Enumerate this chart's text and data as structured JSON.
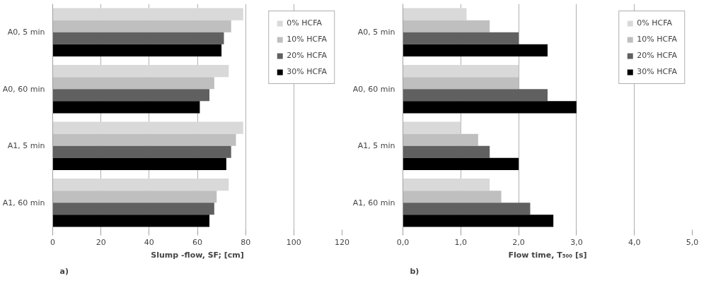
{
  "chart_data": [
    {
      "type": "bar",
      "orientation": "horizontal",
      "categories": [
        "A0, 5 min",
        "A0, 60 min",
        "A1, 5 min",
        "A1, 60 min"
      ],
      "series": [
        {
          "name": "0% HCFA",
          "color": "#d9d9d9",
          "values": [
            79,
            73,
            79,
            73
          ]
        },
        {
          "name": "10% HCFA",
          "color": "#bfbfbf",
          "values": [
            74,
            67,
            76,
            68
          ]
        },
        {
          "name": "20% HCFA",
          "color": "#606060",
          "values": [
            71,
            65,
            74,
            67
          ]
        },
        {
          "name": "30% HCFA",
          "color": "#000000",
          "values": [
            70,
            61,
            72,
            65
          ]
        }
      ],
      "xlim": [
        0,
        120
      ],
      "xticks": [
        0,
        20,
        40,
        60,
        80,
        100,
        120
      ],
      "xlabel": "Slump -flow, SF; [cm]",
      "annotations": [
        "a)"
      ],
      "grid": "x",
      "legend": "top right"
    },
    {
      "type": "bar",
      "orientation": "horizontal",
      "categories": [
        "A0, 5 min",
        "A0, 60 min",
        "A1, 5 min",
        "A1, 60 min"
      ],
      "series": [
        {
          "name": "0% HCFA",
          "color": "#d9d9d9",
          "values": [
            1.1,
            2.0,
            1.0,
            1.5
          ]
        },
        {
          "name": "10% HCFA",
          "color": "#bfbfbf",
          "values": [
            1.5,
            2.0,
            1.3,
            1.7
          ]
        },
        {
          "name": "20% HCFA",
          "color": "#606060",
          "values": [
            2.0,
            2.5,
            1.5,
            2.2
          ]
        },
        {
          "name": "30% HCFA",
          "color": "#000000",
          "values": [
            2.5,
            3.0,
            2.0,
            2.6
          ]
        }
      ],
      "xlim": [
        0,
        5
      ],
      "xticks": [
        {
          "value": 0,
          "label": "0,0"
        },
        {
          "value": 1,
          "label": "1,0"
        },
        {
          "value": 2,
          "label": "2,0"
        },
        {
          "value": 3,
          "label": "3,0"
        },
        {
          "value": 4,
          "label": "4,0"
        },
        {
          "value": 5,
          "label": "5,0"
        }
      ],
      "xlabel": "Flow time, T₅₀₀ [s]",
      "annotations": [
        "b)"
      ],
      "grid": "x",
      "legend": "top right"
    }
  ]
}
